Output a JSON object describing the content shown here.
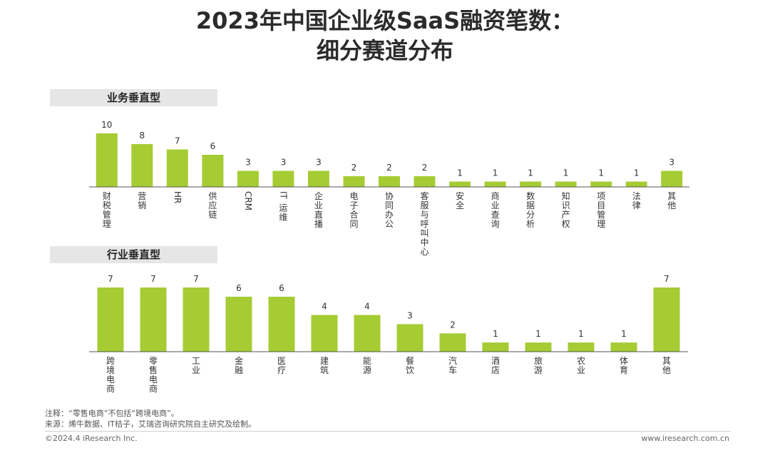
{
  "title": [
    "2023年中国企业级SaaS融资笔数：",
    "细分赛道分布"
  ],
  "colors": {
    "bar": "#a5cc33",
    "axis": "#555555",
    "label_bg": "#e6e6e6"
  },
  "chart_data": [
    {
      "type": "bar",
      "title": "业务垂直型",
      "categories": [
        "财税管理",
        "营销",
        "HR",
        "供应链",
        "CRM",
        "IT运维",
        "企业直播",
        "电子合同",
        "协同办公",
        "客服与呼叫中心",
        "安全",
        "商业查询",
        "数据分析",
        "知识产权",
        "项目管理",
        "法律",
        "其他"
      ],
      "values": [
        10,
        8,
        7,
        6,
        3,
        3,
        3,
        2,
        2,
        2,
        1,
        1,
        1,
        1,
        1,
        1,
        3
      ],
      "ylim": [
        0,
        10
      ]
    },
    {
      "type": "bar",
      "title": "行业垂直型",
      "categories": [
        "跨境电商",
        "零售电商",
        "工业",
        "金融",
        "医疗",
        "建筑",
        "能源",
        "餐饮",
        "汽车",
        "酒店",
        "旅游",
        "农业",
        "体育",
        "其他"
      ],
      "values": [
        7,
        7,
        7,
        6,
        6,
        4,
        4,
        3,
        2,
        1,
        1,
        1,
        1,
        7
      ],
      "ylim": [
        0,
        7
      ]
    }
  ],
  "notes": [
    "注释：“零售电商”不包括“跨境电商”。",
    "来源：烯牛数据、IT桔子，艾瑞咨询研究院自主研究及绘制。"
  ],
  "footer": {
    "copyright": "©2024.4 iResearch Inc.",
    "website": "www.iresearch.com.cn"
  }
}
